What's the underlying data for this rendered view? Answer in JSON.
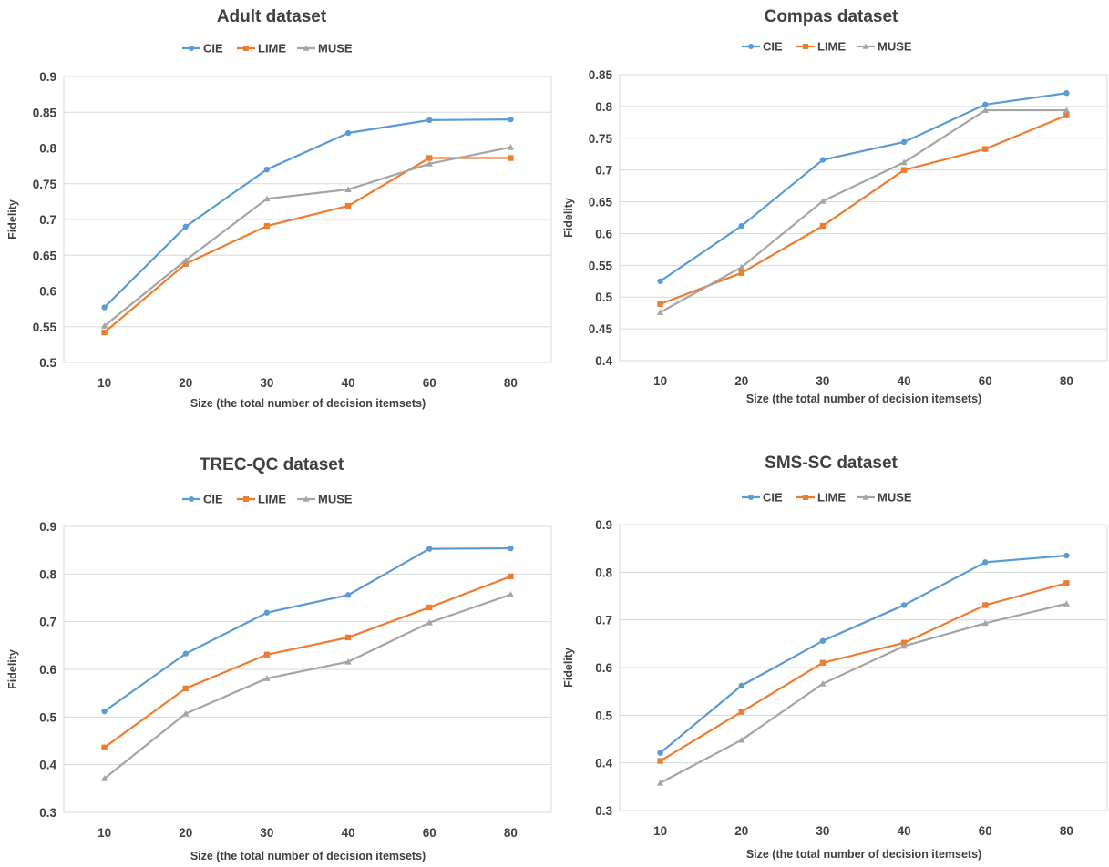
{
  "colors": {
    "CIE": "#5b9bd5",
    "LIME": "#ed7d31",
    "MUSE": "#a5a5a5"
  },
  "chart_data": [
    {
      "type": "line",
      "title": "Adult dataset",
      "xlabel": "Size (the total number of decision itemsets)",
      "ylabel": "Fidelity",
      "categories": [
        "10",
        "20",
        "30",
        "40",
        "60",
        "80"
      ],
      "ylim": [
        0.5,
        0.9
      ],
      "yticks": [
        "0.5",
        "0.55",
        "0.6",
        "0.65",
        "0.7",
        "0.75",
        "0.8",
        "0.85",
        "0.9"
      ],
      "legend_position": "top",
      "grid": true,
      "series": [
        {
          "name": "CIE",
          "marker": "circle",
          "values": [
            0.577,
            0.69,
            0.77,
            0.821,
            0.839,
            0.84
          ]
        },
        {
          "name": "LIME",
          "marker": "square",
          "values": [
            0.542,
            0.638,
            0.691,
            0.719,
            0.786,
            0.786
          ]
        },
        {
          "name": "MUSE",
          "marker": "triangle",
          "values": [
            0.551,
            0.643,
            0.729,
            0.742,
            0.778,
            0.801
          ]
        }
      ]
    },
    {
      "type": "line",
      "title": "Compas dataset",
      "xlabel": "Size (the total number of decision itemsets)",
      "ylabel": "Fidelity",
      "categories": [
        "10",
        "20",
        "30",
        "40",
        "60",
        "80"
      ],
      "ylim": [
        0.4,
        0.85
      ],
      "yticks": [
        "0.4",
        "0.45",
        "0.5",
        "0.55",
        "0.6",
        "0.65",
        "0.7",
        "0.75",
        "0.8",
        "0.85"
      ],
      "legend_position": "top",
      "grid": true,
      "series": [
        {
          "name": "CIE",
          "marker": "circle",
          "values": [
            0.525,
            0.612,
            0.716,
            0.744,
            0.803,
            0.821
          ]
        },
        {
          "name": "LIME",
          "marker": "square",
          "values": [
            0.489,
            0.538,
            0.612,
            0.7,
            0.733,
            0.786
          ]
        },
        {
          "name": "MUSE",
          "marker": "triangle",
          "values": [
            0.476,
            0.547,
            0.651,
            0.712,
            0.794,
            0.794
          ]
        }
      ]
    },
    {
      "type": "line",
      "title": "TREC-QC dataset",
      "xlabel": "Size (the total number of decision itemsets)",
      "ylabel": "Fidelity",
      "categories": [
        "10",
        "20",
        "30",
        "40",
        "60",
        "80"
      ],
      "ylim": [
        0.3,
        0.9
      ],
      "yticks": [
        "0.3",
        "0.4",
        "0.5",
        "0.6",
        "0.7",
        "0.8",
        "0.9"
      ],
      "legend_position": "top",
      "grid": true,
      "series": [
        {
          "name": "CIE",
          "marker": "circle",
          "values": [
            0.512,
            0.633,
            0.719,
            0.756,
            0.853,
            0.854
          ]
        },
        {
          "name": "LIME",
          "marker": "square",
          "values": [
            0.436,
            0.56,
            0.631,
            0.667,
            0.73,
            0.795
          ]
        },
        {
          "name": "MUSE",
          "marker": "triangle",
          "values": [
            0.371,
            0.507,
            0.581,
            0.616,
            0.698,
            0.757
          ]
        }
      ]
    },
    {
      "type": "line",
      "title": "SMS-SC dataset",
      "xlabel": "Size (the total number of decision itemsets)",
      "ylabel": "Fidelity",
      "categories": [
        "10",
        "20",
        "30",
        "40",
        "60",
        "80"
      ],
      "ylim": [
        0.3,
        0.9
      ],
      "yticks": [
        "0.3",
        "0.4",
        "0.5",
        "0.6",
        "0.7",
        "0.8",
        "0.9"
      ],
      "legend_position": "top",
      "grid": true,
      "series": [
        {
          "name": "CIE",
          "marker": "circle",
          "values": [
            0.421,
            0.562,
            0.656,
            0.731,
            0.821,
            0.835
          ]
        },
        {
          "name": "LIME",
          "marker": "square",
          "values": [
            0.404,
            0.507,
            0.61,
            0.652,
            0.731,
            0.777
          ]
        },
        {
          "name": "MUSE",
          "marker": "triangle",
          "values": [
            0.358,
            0.448,
            0.566,
            0.645,
            0.693,
            0.734
          ]
        }
      ]
    }
  ]
}
